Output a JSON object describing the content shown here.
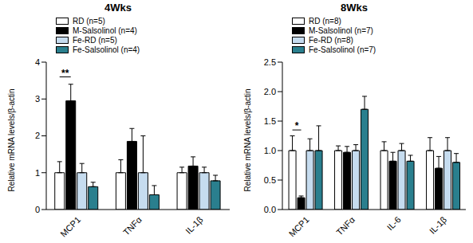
{
  "chart_data": [
    {
      "type": "bar",
      "title": "4Wks",
      "y_label": "Relative mRNA levels/β-actin",
      "categories": [
        "MCP1",
        "TNFα",
        "IL-1β"
      ],
      "series": [
        {
          "name": "RD (n=5)",
          "color": "#ffffff",
          "values": [
            1.0,
            1.0,
            1.0
          ],
          "errors": [
            0.3,
            0.35,
            0.15
          ]
        },
        {
          "name": "M-Salsolinol (n=4)",
          "color": "#000000",
          "values": [
            2.95,
            1.85,
            1.18
          ],
          "errors": [
            0.45,
            0.35,
            0.25
          ]
        },
        {
          "name": "Fe-RD (n=5)",
          "color": "#c6dcef",
          "values": [
            1.0,
            1.0,
            1.0
          ],
          "errors": [
            0.25,
            1.0,
            0.15
          ]
        },
        {
          "name": "Fe-Salsolinol (n=4)",
          "color": "#2a7f8e",
          "values": [
            0.62,
            0.4,
            0.78
          ],
          "errors": [
            0.12,
            0.25,
            0.15
          ]
        }
      ],
      "ylim": [
        0,
        4
      ],
      "yticks": [
        0,
        1,
        2,
        3,
        4
      ],
      "annotations": [
        {
          "text": "**",
          "category": "MCP1",
          "from": "RD (n=5)",
          "to": "M-Salsolinol (n=4)",
          "y": 3.6
        }
      ]
    },
    {
      "type": "bar",
      "title": "8Wks",
      "y_label": "Relative mRNA levels/β-actin",
      "categories": [
        "MCP1",
        "TNFα",
        "IL-6",
        "IL-1β"
      ],
      "series": [
        {
          "name": "RD (n=8)",
          "color": "#ffffff",
          "values": [
            1.0,
            1.0,
            1.0,
            1.0
          ],
          "errors": [
            0.25,
            0.08,
            0.15,
            0.22
          ]
        },
        {
          "name": "M-Salsolinol (n=7)",
          "color": "#000000",
          "values": [
            0.2,
            0.97,
            0.82,
            0.7
          ],
          "errors": [
            0.03,
            0.1,
            0.15,
            0.2
          ]
        },
        {
          "name": "Fe-RD (n=8)",
          "color": "#c6dcef",
          "values": [
            1.0,
            1.0,
            1.0,
            1.0
          ],
          "errors": [
            0.2,
            0.1,
            0.12,
            0.22
          ]
        },
        {
          "name": "Fe-Salsolinol (n=7)",
          "color": "#2a7f8e",
          "values": [
            1.0,
            1.7,
            0.82,
            0.8
          ],
          "errors": [
            0.42,
            0.22,
            0.1,
            0.15
          ]
        }
      ],
      "ylim": [
        0,
        2.5
      ],
      "yticks": [
        {
          "value": 0,
          "label": "0.0"
        },
        {
          "value": 0.5,
          "label": "0.5"
        },
        {
          "value": 1,
          "label": "1.0"
        },
        {
          "value": 1.5,
          "label": "1.5"
        },
        {
          "value": 2,
          "label": "2.0"
        },
        {
          "value": 2.5,
          "label": "2.5"
        }
      ],
      "annotations": [
        {
          "text": "*",
          "category": "MCP1",
          "from": "RD (n=8)",
          "to": "M-Salsolinol (n=7)",
          "y": 1.35
        }
      ]
    }
  ]
}
